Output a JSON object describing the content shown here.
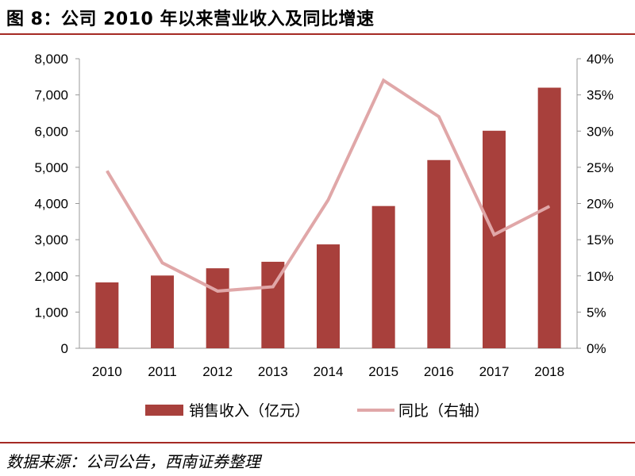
{
  "title": "图 8：公司 2010 年以来营业收入及同比增速",
  "source": "数据来源：公司公告，西南证券整理",
  "colors": {
    "bar": "#a8403c",
    "line": "#e0a7a8",
    "rule": "#a52a24",
    "axis": "#999999"
  },
  "chart_data": {
    "type": "bar",
    "categories": [
      "2010",
      "2011",
      "2012",
      "2013",
      "2014",
      "2015",
      "2016",
      "2017",
      "2018"
    ],
    "series": [
      {
        "name": "销售收入（亿元）",
        "type": "bar",
        "axis": "left",
        "values": [
          1820,
          2010,
          2210,
          2390,
          2870,
          3930,
          5200,
          6010,
          7200
        ]
      },
      {
        "name": "同比（右轴）",
        "type": "line",
        "axis": "right",
        "values": [
          0.245,
          0.118,
          0.079,
          0.085,
          0.205,
          0.37,
          0.32,
          0.157,
          0.196
        ]
      }
    ],
    "y_left": {
      "min": 0,
      "max": 8000,
      "ticks": [
        "0",
        "1,000",
        "2,000",
        "3,000",
        "4,000",
        "5,000",
        "6,000",
        "7,000",
        "8,000"
      ]
    },
    "y_right": {
      "min": 0,
      "max": 0.4,
      "ticks": [
        "0%",
        "5%",
        "10%",
        "15%",
        "20%",
        "25%",
        "30%",
        "35%",
        "40%"
      ]
    },
    "legend": {
      "position": "bottom"
    },
    "grid": false
  }
}
